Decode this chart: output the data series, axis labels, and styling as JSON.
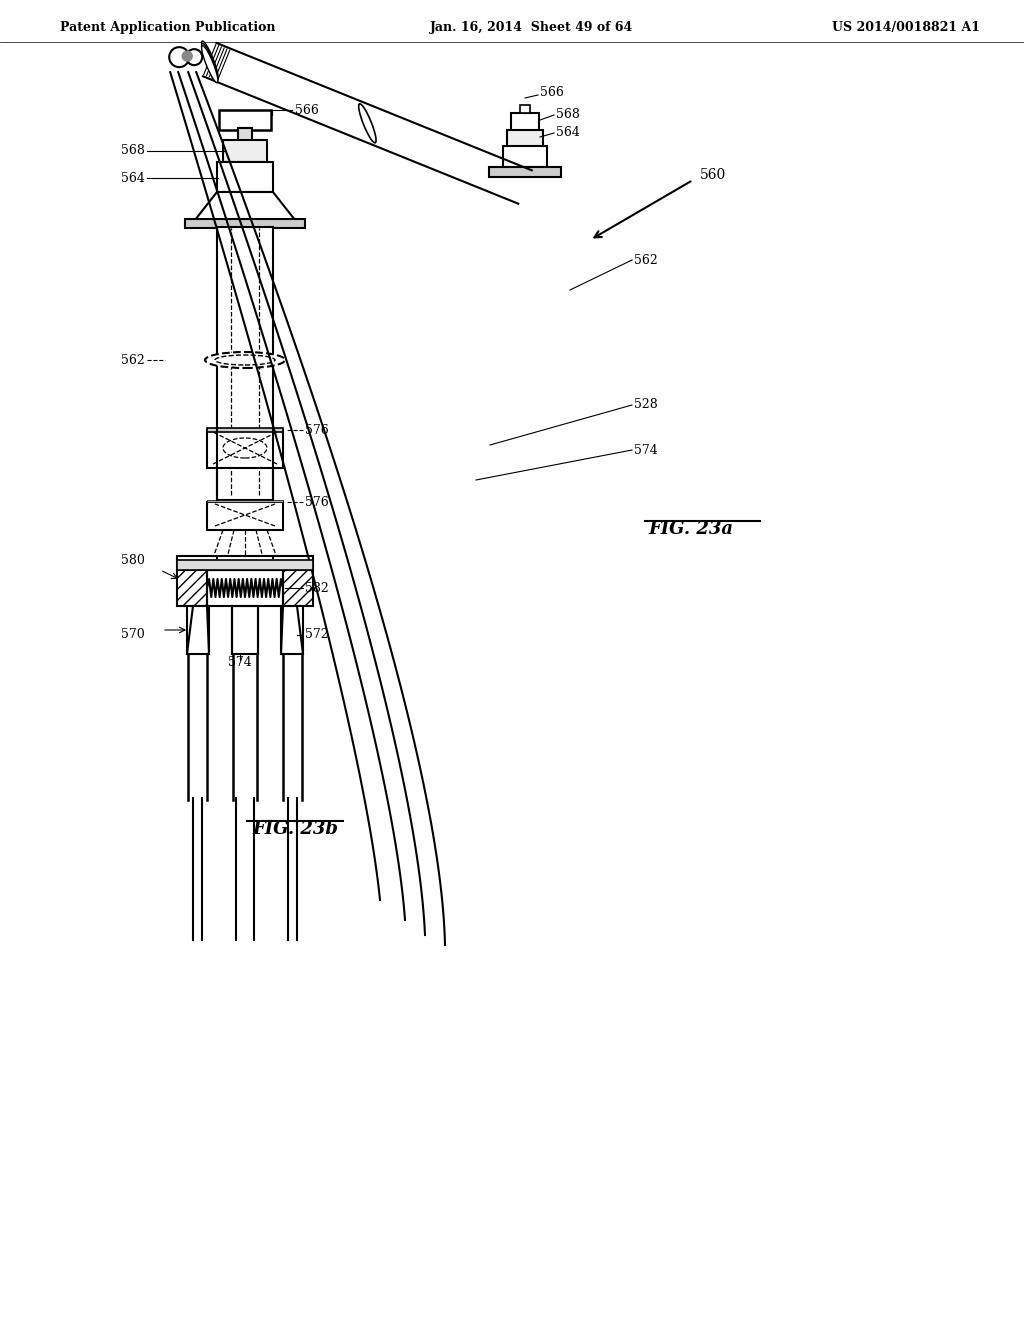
{
  "background_color": "#ffffff",
  "header_left": "Patent Application Publication",
  "header_center": "Jan. 16, 2014  Sheet 49 of 64",
  "header_right": "US 2014/0018821 A1",
  "fig23a_label": "FIG. 23a",
  "fig23b_label": "FIG. 23b"
}
